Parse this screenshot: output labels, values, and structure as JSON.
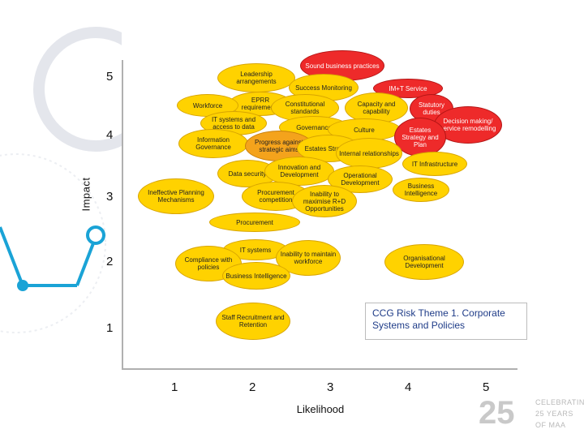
{
  "title": "CCG Risk Theme 1. Corporate Systems and Policies",
  "axes": {
    "y_title": "Impact",
    "x_title": "Likelihood",
    "y_ticks": [
      "5",
      "4",
      "3",
      "2",
      "1"
    ],
    "x_ticks": [
      "1",
      "2",
      "3",
      "4",
      "5"
    ]
  },
  "risks": [
    {
      "label": "Sound business practices",
      "color": "red"
    },
    {
      "label": "Leadership arrangements",
      "color": "yellow"
    },
    {
      "label": "Success Monitoring",
      "color": "yellow"
    },
    {
      "label": "IM+T Service",
      "color": "red"
    },
    {
      "label": "EPRR requirements",
      "color": "yellow"
    },
    {
      "label": "Workforce",
      "color": "yellow"
    },
    {
      "label": "Constitutional standards",
      "color": "yellow"
    },
    {
      "label": "Capacity and capability",
      "color": "yellow"
    },
    {
      "label": "Statutory duties",
      "color": "red"
    },
    {
      "label": "Decision making/ service remodelling",
      "color": "red"
    },
    {
      "label": "IT systems and access to data",
      "color": "yellow"
    },
    {
      "label": "Governance",
      "color": "yellow"
    },
    {
      "label": "Culture",
      "color": "yellow"
    },
    {
      "label": "Estates Strategy and Plan",
      "color": "red"
    },
    {
      "label": "Information Governance",
      "color": "yellow"
    },
    {
      "label": "Progress against strategic aims",
      "color": "orange"
    },
    {
      "label": "Estates Strategy",
      "color": "yellow"
    },
    {
      "label": "Internal relationships",
      "color": "yellow"
    },
    {
      "label": "IT Infrastructure",
      "color": "yellow"
    },
    {
      "label": "Data security",
      "color": "yellow"
    },
    {
      "label": "Innovation and Development",
      "color": "yellow"
    },
    {
      "label": "Operational Development",
      "color": "yellow"
    },
    {
      "label": "Ineffective Planning Mechanisms",
      "color": "yellow"
    },
    {
      "label": "Procurement competition",
      "color": "yellow"
    },
    {
      "label": "Inability to maximise R+D Opportunities",
      "color": "yellow"
    },
    {
      "label": "Business Intelligence",
      "color": "yellow"
    },
    {
      "label": "Procurement",
      "color": "yellow"
    },
    {
      "label": "IT systems",
      "color": "yellow"
    },
    {
      "label": "Inability to maintain workforce",
      "color": "yellow"
    },
    {
      "label": "Compliance with policies",
      "color": "yellow"
    },
    {
      "label": "Organisational Development",
      "color": "yellow"
    },
    {
      "label": "Business Intelligence",
      "color": "yellow"
    },
    {
      "label": "Staff Recruitment and Retention",
      "color": "yellow"
    }
  ],
  "logo": {
    "number": "25",
    "lines": [
      "CELEBRATING",
      "25 YEARS",
      "OF MAA"
    ]
  },
  "colors": {
    "yellow": "#ffd200",
    "orange": "#f4a31c",
    "red": "#ee2a2a"
  }
}
